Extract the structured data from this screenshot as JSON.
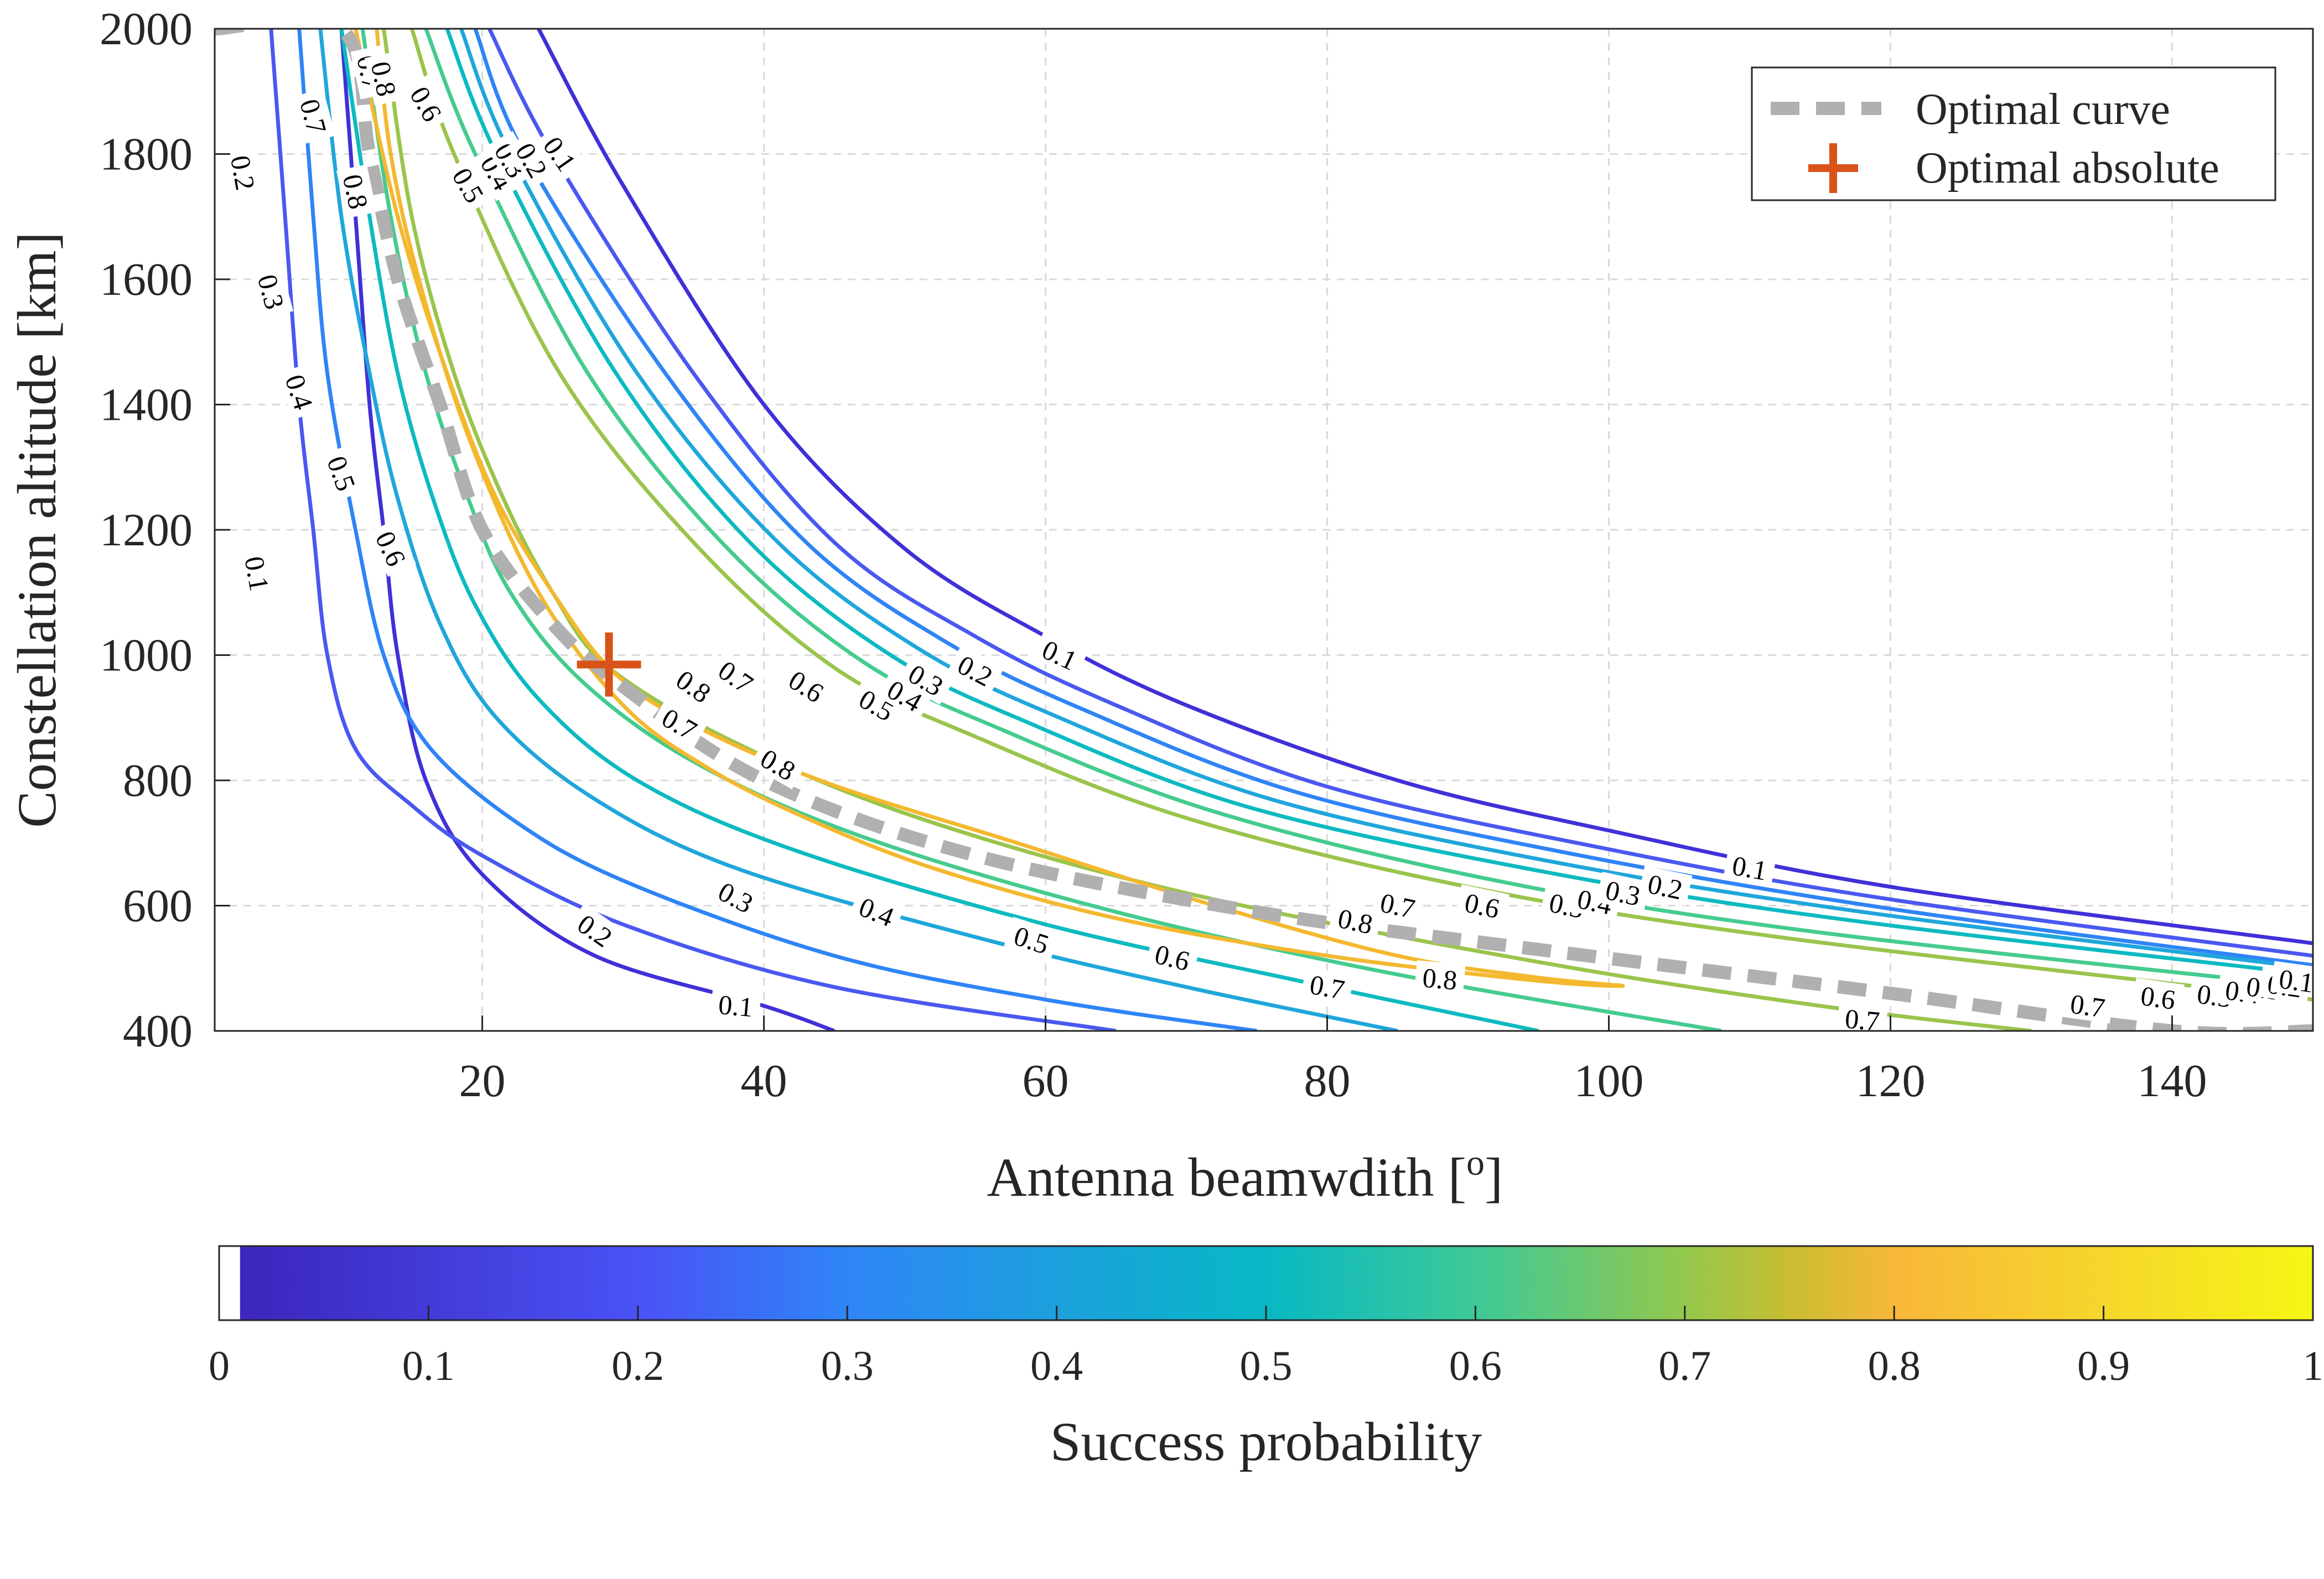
{
  "chart_data": {
    "type": "contour",
    "xlabel": "Antenna beamwdith [",
    "xlabel_sup": "o",
    "xlabel_end": "]",
    "ylabel": "Constellation altitude [km]",
    "xlim": [
      1,
      150
    ],
    "ylim": [
      400,
      2000
    ],
    "xticks": [
      20,
      40,
      60,
      80,
      100,
      120,
      140
    ],
    "yticks": [
      400,
      600,
      800,
      1000,
      1200,
      1400,
      1600,
      1800,
      2000
    ],
    "grid": true,
    "legend_position": "top-right",
    "legend": [
      {
        "label": "Optimal curve",
        "style": "dashed",
        "color": "#b0b0b0"
      },
      {
        "label": "Optimal absolute",
        "style": "plus-marker",
        "color": "#d95319"
      }
    ],
    "levels": [
      0.1,
      0.2,
      0.3,
      0.4,
      0.5,
      0.6,
      0.7,
      0.8
    ],
    "level_colors": [
      "#4030d8",
      "#4a58f0",
      "#2f84f6",
      "#1fa6db",
      "#0cbac0",
      "#45cb8e",
      "#9ac44c",
      "#f4b82f"
    ],
    "contours": [
      {
        "level": 0.1,
        "side": "left",
        "points": [
          [
            10,
            2000
          ],
          [
            11,
            1700
          ],
          [
            12,
            1400
          ],
          [
            13,
            1200
          ],
          [
            14,
            1000
          ],
          [
            16,
            800
          ],
          [
            20,
            650
          ],
          [
            28,
            520
          ],
          [
            40,
            440
          ],
          [
            45,
            400
          ]
        ]
      },
      {
        "level": 0.1,
        "side": "right",
        "points": [
          [
            24,
            2000
          ],
          [
            30,
            1750
          ],
          [
            40,
            1400
          ],
          [
            50,
            1170
          ],
          [
            60,
            1030
          ],
          [
            70,
            920
          ],
          [
            85,
            800
          ],
          [
            100,
            720
          ],
          [
            120,
            630
          ],
          [
            150,
            540
          ]
        ]
      },
      {
        "level": 0.2,
        "side": "left",
        "points": [
          [
            5,
            2000
          ],
          [
            6,
            1700
          ],
          [
            7,
            1400
          ],
          [
            8,
            1200
          ],
          [
            9,
            1000
          ],
          [
            11,
            850
          ],
          [
            15,
            760
          ],
          [
            20,
            680
          ],
          [
            30,
            570
          ],
          [
            45,
            470
          ],
          [
            65,
            400
          ]
        ]
      },
      {
        "level": 0.2,
        "side": "right",
        "points": [
          [
            20.5,
            2000
          ],
          [
            25,
            1800
          ],
          [
            35,
            1450
          ],
          [
            45,
            1180
          ],
          [
            55,
            1030
          ],
          [
            65,
            920
          ],
          [
            80,
            790
          ],
          [
            100,
            690
          ],
          [
            120,
            610
          ],
          [
            150,
            520
          ]
        ]
      },
      {
        "level": 0.3,
        "side": "left",
        "points": [
          [
            7,
            2000
          ],
          [
            8,
            1700
          ],
          [
            9,
            1450
          ],
          [
            11,
            1200
          ],
          [
            13,
            1000
          ],
          [
            16,
            860
          ],
          [
            22,
            740
          ],
          [
            30,
            640
          ],
          [
            45,
            520
          ],
          [
            60,
            450
          ],
          [
            75,
            400
          ]
        ]
      },
      {
        "level": 0.3,
        "side": "right",
        "points": [
          [
            19.5,
            2000
          ],
          [
            23,
            1800
          ],
          [
            33,
            1450
          ],
          [
            43,
            1180
          ],
          [
            53,
            1020
          ],
          [
            63,
            910
          ],
          [
            78,
            780
          ],
          [
            98,
            680
          ],
          [
            120,
            595
          ],
          [
            150,
            505
          ]
        ]
      },
      {
        "level": 0.4,
        "side": "left",
        "points": [
          [
            8.5,
            2000
          ],
          [
            10,
            1700
          ],
          [
            12,
            1450
          ],
          [
            14,
            1250
          ],
          [
            17,
            1050
          ],
          [
            21,
            900
          ],
          [
            28,
            770
          ],
          [
            38,
            660
          ],
          [
            55,
            550
          ],
          [
            70,
            470
          ],
          [
            85,
            400
          ]
        ]
      },
      {
        "level": 0.4,
        "side": "right",
        "points": [
          [
            18.5,
            2000
          ],
          [
            22,
            1800
          ],
          [
            31,
            1450
          ],
          [
            41,
            1180
          ],
          [
            51,
            1010
          ],
          [
            61,
            900
          ],
          [
            76,
            770
          ],
          [
            96,
            670
          ],
          [
            118,
            590
          ],
          [
            150,
            500
          ]
        ]
      },
      {
        "level": 0.5,
        "side": "left",
        "points": [
          [
            10,
            2000
          ],
          [
            12,
            1700
          ],
          [
            14,
            1450
          ],
          [
            16.5,
            1250
          ],
          [
            19.5,
            1080
          ],
          [
            24,
            930
          ],
          [
            31,
            800
          ],
          [
            42,
            690
          ],
          [
            60,
            570
          ],
          [
            78,
            480
          ],
          [
            95,
            400
          ]
        ]
      },
      {
        "level": 0.5,
        "side": "right",
        "points": [
          [
            17.5,
            2000
          ],
          [
            21,
            1800
          ],
          [
            29.5,
            1450
          ],
          [
            39,
            1180
          ],
          [
            49,
            1000
          ],
          [
            59,
            890
          ],
          [
            74,
            760
          ],
          [
            94,
            660
          ],
          [
            116,
            580
          ],
          [
            150,
            490
          ]
        ]
      },
      {
        "level": 0.6,
        "side": "left",
        "points": [
          [
            11.5,
            2000
          ],
          [
            13.5,
            1700
          ],
          [
            16,
            1450
          ],
          [
            19,
            1250
          ],
          [
            22,
            1100
          ],
          [
            27,
            960
          ],
          [
            35,
            830
          ],
          [
            47,
            710
          ],
          [
            65,
            590
          ],
          [
            85,
            490
          ],
          [
            108,
            400
          ]
        ]
      },
      {
        "level": 0.6,
        "side": "right",
        "points": [
          [
            16,
            2000
          ],
          [
            19.5,
            1800
          ],
          [
            27.5,
            1450
          ],
          [
            37,
            1180
          ],
          [
            47,
            990
          ],
          [
            57,
            880
          ],
          [
            72,
            750
          ],
          [
            92,
            640
          ],
          [
            114,
            560
          ],
          [
            150,
            470
          ]
        ]
      },
      {
        "level": 0.7,
        "side": "left",
        "points": [
          [
            13,
            2000
          ],
          [
            15,
            1700
          ],
          [
            18,
            1450
          ],
          [
            21.5,
            1250
          ],
          [
            25,
            1100
          ],
          [
            29,
            980
          ],
          [
            38,
            860
          ],
          [
            51,
            740
          ],
          [
            70,
            620
          ],
          [
            95,
            510
          ],
          [
            115,
            440
          ],
          [
            130,
            400
          ]
        ]
      },
      {
        "level": 0.7,
        "side": "right",
        "points": [
          [
            15,
            2000
          ],
          [
            18,
            1800
          ],
          [
            25.5,
            1450
          ],
          [
            35,
            1180
          ],
          [
            45,
            980
          ],
          [
            55,
            870
          ],
          [
            70,
            740
          ],
          [
            90,
            630
          ],
          [
            112,
            550
          ],
          [
            150,
            450
          ]
        ]
      },
      {
        "level": 0.8,
        "closed": true,
        "points": [
          [
            11,
            2000
          ],
          [
            14,
            1700
          ],
          [
            17.5,
            1450
          ],
          [
            21,
            1250
          ],
          [
            25,
            1100
          ],
          [
            29,
            980
          ],
          [
            34,
            900
          ],
          [
            44,
            800
          ],
          [
            58,
            700
          ],
          [
            72,
            600
          ],
          [
            85,
            520
          ],
          [
            95,
            485
          ],
          [
            101,
            472
          ],
          [
            95,
            480
          ],
          [
            80,
            520
          ],
          [
            65,
            580
          ],
          [
            52,
            660
          ],
          [
            43,
            740
          ],
          [
            36,
            820
          ],
          [
            30,
            920
          ],
          [
            24,
            1100
          ],
          [
            19,
            1350
          ],
          [
            15.5,
            1600
          ],
          [
            13.5,
            1800
          ],
          [
            12.5,
            2000
          ]
        ]
      }
    ],
    "optimal_curve": {
      "points": [
        [
          1,
          2000
        ],
        [
          10,
          2000
        ],
        [
          12,
          1800
        ],
        [
          14,
          1600
        ],
        [
          17,
          1400
        ],
        [
          20,
          1200
        ],
        [
          25,
          1050
        ],
        [
          30,
          950
        ],
        [
          40,
          800
        ],
        [
          55,
          680
        ],
        [
          75,
          590
        ],
        [
          95,
          530
        ],
        [
          120,
          460
        ],
        [
          140,
          400
        ],
        [
          150,
          400
        ]
      ]
    },
    "optimal_absolute": {
      "x": 29,
      "y": 985
    },
    "contour_labels": [
      {
        "text": "0.1",
        "x": 4,
        "y": 1130,
        "rot": 80
      },
      {
        "text": "0.2",
        "x": 3,
        "y": 1770,
        "rot": 80
      },
      {
        "text": "0.3",
        "x": 5,
        "y": 1580,
        "rot": 75
      },
      {
        "text": "0.4",
        "x": 7,
        "y": 1420,
        "rot": 72
      },
      {
        "text": "0.5",
        "x": 10,
        "y": 1290,
        "rot": 70
      },
      {
        "text": "0.6",
        "x": 13.5,
        "y": 1170,
        "rot": 65
      },
      {
        "text": "0.7",
        "x": 8,
        "y": 1860,
        "rot": 75
      },
      {
        "text": "0.8",
        "x": 11,
        "y": 1740,
        "rot": 78
      },
      {
        "text": "0.7",
        "x": 12,
        "y": 1930,
        "rot": 78
      },
      {
        "text": "0.8",
        "x": 13,
        "y": 1920,
        "rot": 78
      },
      {
        "text": "0.6",
        "x": 16,
        "y": 1880,
        "rot": 60
      },
      {
        "text": "0.5",
        "x": 19,
        "y": 1750,
        "rot": 60
      },
      {
        "text": "0.4",
        "x": 21,
        "y": 1770,
        "rot": 60
      },
      {
        "text": "0.3",
        "x": 22,
        "y": 1790,
        "rot": 60
      },
      {
        "text": "0.2",
        "x": 23.5,
        "y": 1790,
        "rot": 60
      },
      {
        "text": "0.1",
        "x": 25.5,
        "y": 1800,
        "rot": 55
      },
      {
        "text": "0.1",
        "x": 38,
        "y": 440,
        "rot": 5
      },
      {
        "text": "0.2",
        "x": 28,
        "y": 560,
        "rot": 35
      },
      {
        "text": "0.3",
        "x": 38,
        "y": 613,
        "rot": 28
      },
      {
        "text": "0.4",
        "x": 48,
        "y": 590,
        "rot": 22
      },
      {
        "text": "0.5",
        "x": 59,
        "y": 545,
        "rot": 18
      },
      {
        "text": "0.6",
        "x": 69,
        "y": 517,
        "rot": 14
      },
      {
        "text": "0.7",
        "x": 80,
        "y": 470,
        "rot": 10
      },
      {
        "text": "0.8",
        "x": 88,
        "y": 483,
        "rot": 5
      },
      {
        "text": "0.7",
        "x": 34,
        "y": 890,
        "rot": 30
      },
      {
        "text": "0.8",
        "x": 41,
        "y": 825,
        "rot": 30
      },
      {
        "text": "0.8",
        "x": 35,
        "y": 950,
        "rot": 35
      },
      {
        "text": "0.7",
        "x": 38,
        "y": 965,
        "rot": 35
      },
      {
        "text": "0.6",
        "x": 43,
        "y": 950,
        "rot": 32
      },
      {
        "text": "0.5",
        "x": 48,
        "y": 920,
        "rot": 30
      },
      {
        "text": "0.4",
        "x": 50,
        "y": 935,
        "rot": 30
      },
      {
        "text": "0.3",
        "x": 51.5,
        "y": 960,
        "rot": 30
      },
      {
        "text": "0.2",
        "x": 55,
        "y": 975,
        "rot": 28
      },
      {
        "text": "0.1",
        "x": 61,
        "y": 1000,
        "rot": 25
      },
      {
        "text": "0.8",
        "x": 82,
        "y": 575,
        "rot": 12
      },
      {
        "text": "0.7",
        "x": 85,
        "y": 600,
        "rot": 12
      },
      {
        "text": "0.6",
        "x": 91,
        "y": 600,
        "rot": 12
      },
      {
        "text": "0.5",
        "x": 97,
        "y": 600,
        "rot": 12
      },
      {
        "text": "0.4",
        "x": 99,
        "y": 606,
        "rot": 12
      },
      {
        "text": "0.3",
        "x": 101,
        "y": 620,
        "rot": 12
      },
      {
        "text": "0.2",
        "x": 104,
        "y": 630,
        "rot": 12
      },
      {
        "text": "0.1",
        "x": 110,
        "y": 660,
        "rot": 10
      },
      {
        "text": "0.7",
        "x": 118,
        "y": 400,
        "rot": 5
      },
      {
        "text": "0.7",
        "x": 134,
        "y": 440,
        "rot": 8
      },
      {
        "text": "0.6",
        "x": 139,
        "y": 453,
        "rot": 8
      },
      {
        "text": "0.5",
        "x": 143,
        "y": 456,
        "rot": 8
      },
      {
        "text": "0.4",
        "x": 145,
        "y": 462,
        "rot": 8
      },
      {
        "text": "0.3",
        "x": 146.5,
        "y": 468,
        "rot": 8
      },
      {
        "text": "0.2",
        "x": 148,
        "y": 472,
        "rot": 8
      },
      {
        "text": "0.1",
        "x": 150,
        "y": 480,
        "rot": 8
      }
    ],
    "colorbar": {
      "label": "Success probability",
      "ticks": [
        "0",
        "0.1",
        "0.2",
        "0.3",
        "0.4",
        "0.5",
        "0.6",
        "0.7",
        "0.8",
        "0.9",
        "1"
      ],
      "range": [
        0,
        1
      ],
      "blank_below": 0.01
    }
  }
}
